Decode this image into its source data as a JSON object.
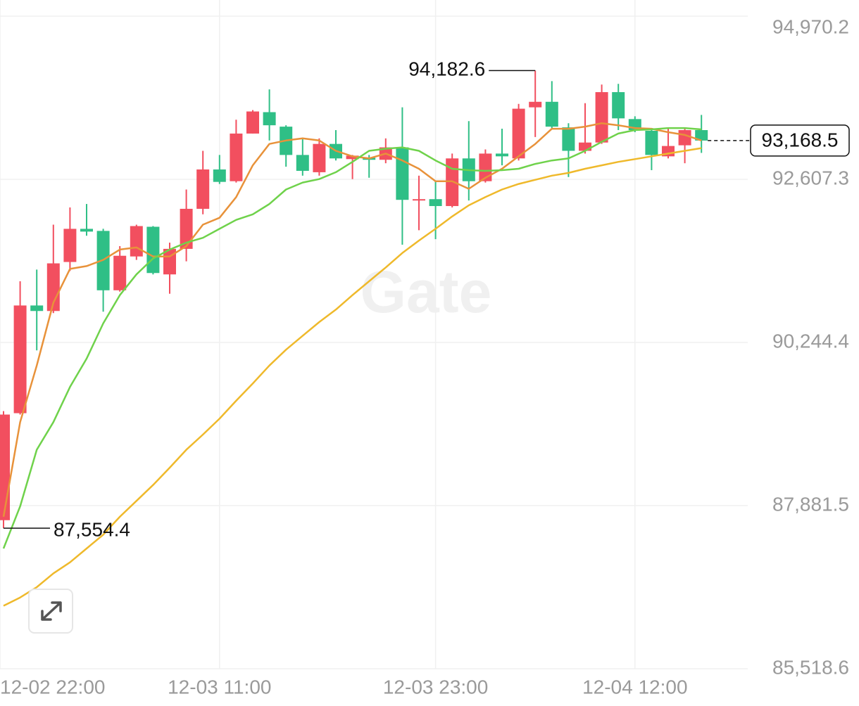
{
  "chart_data": {
    "type": "candlestick",
    "watermark": "Gate",
    "categories": [
      "12-02 22:00",
      null,
      null,
      null,
      null,
      null,
      null,
      null,
      null,
      null,
      null,
      null,
      null,
      "12-03 11:00",
      null,
      null,
      null,
      null,
      null,
      null,
      null,
      null,
      null,
      null,
      null,
      null,
      "12-03 23:00",
      null,
      null,
      null,
      null,
      null,
      null,
      null,
      null,
      null,
      null,
      null,
      "12-04 12:00",
      null,
      null,
      null,
      null
    ],
    "open": [
      87670,
      89220,
      90780,
      90700,
      91410,
      91890,
      91860,
      91000,
      91490,
      91920,
      91230,
      91600,
      92180,
      92750,
      92580,
      93270,
      93580,
      93370,
      92960,
      92710,
      93120,
      92900,
      92920,
      92890,
      93070,
      92300,
      92320,
      92220,
      92910,
      92580,
      92980,
      92910,
      93650,
      93730,
      93360,
      93020,
      93140,
      93870,
      93480,
      93310,
      92940,
      93100,
      93320
    ],
    "high": [
      89250,
      91130,
      91300,
      91950,
      92200,
      92250,
      91890,
      91640,
      91950,
      91930,
      91690,
      92460,
      93020,
      92960,
      93470,
      93610,
      93910,
      93390,
      93200,
      93200,
      93320,
      92960,
      92960,
      93200,
      93650,
      92660,
      92590,
      92980,
      93450,
      93040,
      93340,
      93700,
      94182.6,
      94030,
      93420,
      93710,
      93980,
      93990,
      93520,
      93350,
      93350,
      93340,
      93540
    ],
    "low": [
      87554.4,
      89200,
      90130,
      90670,
      91280,
      91790,
      90690,
      90980,
      91440,
      91230,
      90950,
      91420,
      92100,
      92540,
      92560,
      93270,
      93170,
      92790,
      92660,
      92660,
      92880,
      92610,
      92630,
      92840,
      91660,
      91870,
      91740,
      92200,
      92300,
      92560,
      92810,
      92880,
      93220,
      93350,
      92640,
      92980,
      93120,
      93320,
      93290,
      92740,
      92910,
      92840,
      92990
    ],
    "close": [
      89200,
      90780,
      90700,
      91390,
      91890,
      91850,
      91000,
      91500,
      91930,
      91250,
      91600,
      92180,
      92750,
      92570,
      93270,
      93590,
      93390,
      92960,
      92730,
      93120,
      92910,
      92950,
      92890,
      93070,
      92310,
      92320,
      92220,
      92910,
      92580,
      92980,
      92940,
      93630,
      93730,
      93370,
      93020,
      93140,
      93870,
      93490,
      93320,
      92960,
      93090,
      93320,
      93168.5
    ],
    "up_color": "#f24f5f",
    "down_color": "#2fbf86",
    "series": [
      {
        "color": "#e8923a",
        "values": [
          87720,
          89090,
          89910,
          90820,
          91310,
          91350,
          91440,
          91590,
          91620,
          91490,
          91490,
          91640,
          91950,
          92050,
          92350,
          92810,
          93120,
          93170,
          93200,
          93170,
          93020,
          92940,
          92910,
          92980,
          92880,
          92760,
          92580,
          92580,
          92470,
          92630,
          92760,
          92940,
          93120,
          93340,
          93340,
          93370,
          93420,
          93390,
          93350,
          93340,
          93290,
          93250,
          93170
        ]
      },
      {
        "color": "#6fd24b",
        "values": [
          87260,
          87870,
          88690,
          89090,
          89600,
          90010,
          90520,
          90930,
          91230,
          91460,
          91590,
          91690,
          91760,
          91890,
          92020,
          92100,
          92250,
          92460,
          92560,
          92610,
          92710,
          92860,
          93020,
          93050,
          93070,
          93020,
          92880,
          92760,
          92740,
          92730,
          92740,
          92760,
          92830,
          92880,
          92910,
          93020,
          93150,
          93270,
          93320,
          93330,
          93350,
          93350,
          93330
        ]
      },
      {
        "color": "#efb92b",
        "values": [
          86430,
          86550,
          86700,
          86900,
          87060,
          87260,
          87460,
          87720,
          87950,
          88180,
          88430,
          88690,
          88910,
          89140,
          89400,
          89650,
          89910,
          90140,
          90340,
          90540,
          90720,
          90930,
          91130,
          91330,
          91540,
          91720,
          91890,
          92070,
          92230,
          92350,
          92460,
          92540,
          92600,
          92660,
          92700,
          92760,
          92810,
          92860,
          92900,
          92940,
          92980,
          93020,
          93060
        ]
      }
    ],
    "ylim": [
      85518.6,
      94970.2
    ],
    "yticks": [
      {
        "value": 94970.2,
        "label": "94,970.2"
      },
      {
        "value": 92607.3,
        "label": "92,607.3"
      },
      {
        "value": 90244.4,
        "label": "90,244.4"
      },
      {
        "value": 87881.5,
        "label": "87,881.5"
      },
      {
        "value": 85518.6,
        "label": "85,518.6"
      }
    ],
    "grid": true,
    "annotations": {
      "high": {
        "value": 94182.6,
        "label": "94,182.6"
      },
      "low": {
        "value": 87554.4,
        "label": "87,554.4"
      },
      "last": {
        "value": 93168.5,
        "label": "93,168.5"
      }
    }
  }
}
